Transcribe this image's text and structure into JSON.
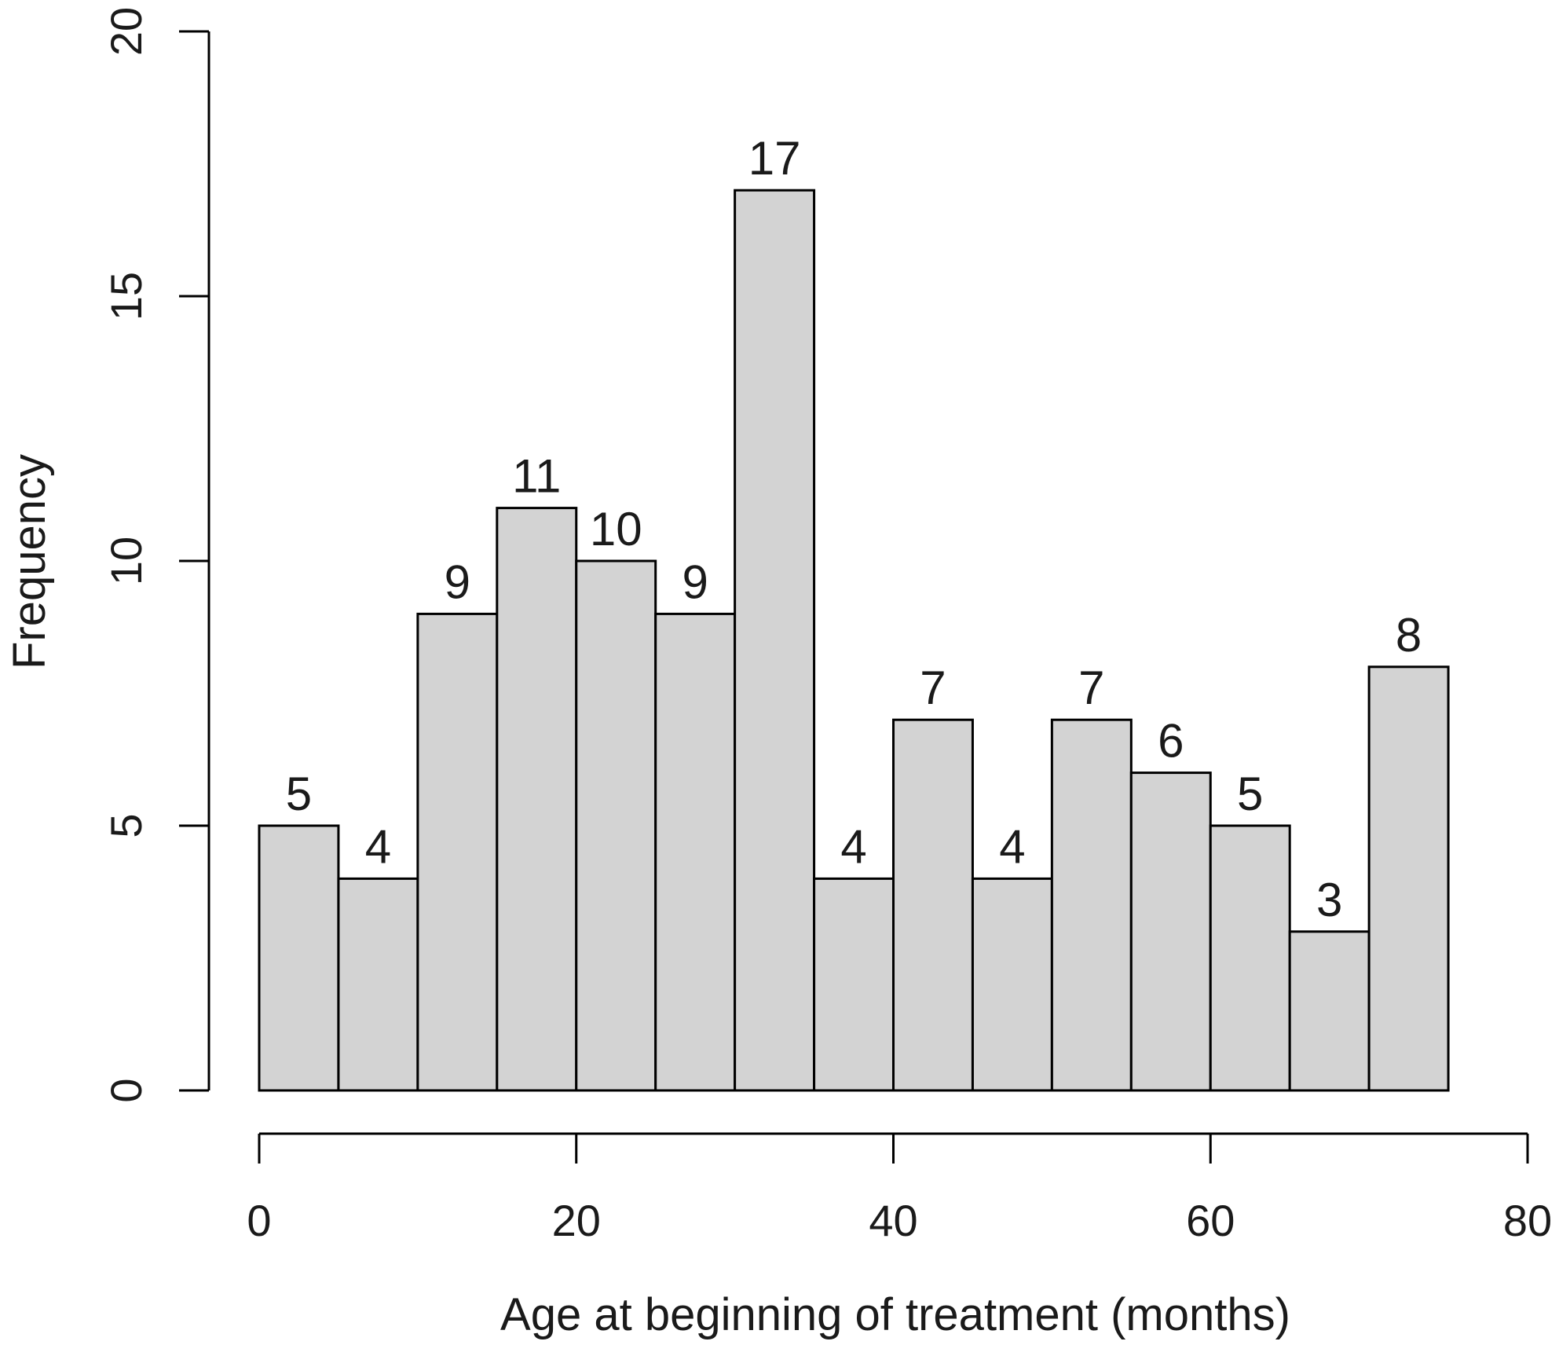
{
  "chart_data": {
    "type": "bar",
    "subtype": "histogram",
    "title": "",
    "xlabel": "Age at beginning of treatment (months)",
    "ylabel": "Frequency",
    "bin_width": 5,
    "bins": [
      {
        "start": 0,
        "end": 5,
        "count": 5
      },
      {
        "start": 5,
        "end": 10,
        "count": 4
      },
      {
        "start": 10,
        "end": 15,
        "count": 9
      },
      {
        "start": 15,
        "end": 20,
        "count": 11
      },
      {
        "start": 20,
        "end": 25,
        "count": 10
      },
      {
        "start": 25,
        "end": 30,
        "count": 9
      },
      {
        "start": 30,
        "end": 35,
        "count": 17
      },
      {
        "start": 35,
        "end": 40,
        "count": 4
      },
      {
        "start": 40,
        "end": 45,
        "count": 7
      },
      {
        "start": 45,
        "end": 50,
        "count": 4
      },
      {
        "start": 50,
        "end": 55,
        "count": 7
      },
      {
        "start": 55,
        "end": 60,
        "count": 6
      },
      {
        "start": 60,
        "end": 65,
        "count": 5
      },
      {
        "start": 65,
        "end": 70,
        "count": 3
      },
      {
        "start": 70,
        "end": 75,
        "count": 8
      }
    ],
    "xlim": [
      0,
      80
    ],
    "ylim": [
      0,
      20
    ],
    "xticks": [
      "0",
      "20",
      "40",
      "60",
      "80"
    ],
    "yticks": [
      "0",
      "5",
      "10",
      "15",
      "20"
    ],
    "bar_color": "#d3d3d3",
    "edge_color": "#000000",
    "grid": false,
    "legend": "none"
  }
}
